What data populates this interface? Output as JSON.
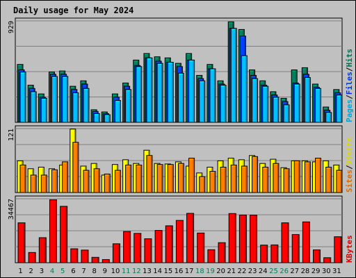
{
  "title": "Daily usage for May 2024",
  "colors": {
    "background": "#c0c0c0",
    "title": "#0000b0",
    "hits": "#00805c",
    "files": "#0040ff",
    "pages": "#00c0ff",
    "visits": "#ffff00",
    "sites": "#ff8000",
    "kbytes": "#ff0000",
    "weekend_label": "#00805c",
    "weekday_label": "#000000"
  },
  "chart_data": {
    "type": "bar",
    "title": "Daily usage for May 2024",
    "categories": [
      "1",
      "2",
      "3",
      "4",
      "5",
      "6",
      "7",
      "8",
      "9",
      "10",
      "11",
      "12",
      "13",
      "14",
      "15",
      "16",
      "17",
      "18",
      "19",
      "20",
      "21",
      "22",
      "23",
      "24",
      "25",
      "26",
      "27",
      "28",
      "29",
      "30",
      "31"
    ],
    "weekend_days": [
      "4",
      "5",
      "11",
      "12",
      "18",
      "19",
      "25",
      "26"
    ],
    "grid": true,
    "legend": "right",
    "panels": [
      {
        "name": "top",
        "max_label": "929",
        "ylim": [
          0,
          929
        ],
        "legend_words": [
          "Pages",
          "Files",
          "Hits"
        ],
        "series": [
          {
            "name": "Hits",
            "values": [
              530,
              340,
              260,
              460,
              470,
              330,
              380,
              115,
              95,
              260,
              360,
              570,
              630,
              600,
              590,
              540,
              630,
              430,
              530,
              380,
              920,
              850,
              480,
              380,
              280,
              220,
              480,
              500,
              350,
              140,
              300
            ]
          },
          {
            "name": "Files",
            "values": [
              480,
              310,
              230,
              440,
              440,
              300,
              350,
              100,
              80,
              230,
              330,
              520,
              590,
              560,
              550,
              510,
              570,
              400,
              490,
              350,
              860,
              790,
              430,
              340,
              250,
              190,
              360,
              440,
              320,
              110,
              270
            ]
          },
          {
            "name": "Pages",
            "values": [
              460,
              280,
              220,
              420,
              420,
              270,
              310,
              80,
              70,
              200,
              300,
              510,
              590,
              540,
              550,
              450,
              570,
              380,
              490,
              340,
              860,
              610,
              400,
              330,
              230,
              160,
              350,
              410,
              310,
              90,
              250
            ]
          }
        ]
      },
      {
        "name": "middle",
        "max_label": "121",
        "ylim": [
          0,
          121
        ],
        "legend_words": [
          "Sites",
          "Visits"
        ],
        "series": [
          {
            "name": "Visits",
            "values": [
              60,
              45,
              48,
              45,
              52,
              120,
              50,
              55,
              33,
              53,
              62,
              55,
              80,
              55,
              54,
              58,
              50,
              37,
              48,
              60,
              65,
              62,
              70,
              55,
              63,
              47,
              60,
              60,
              58,
              60,
              52
            ]
          },
          {
            "name": "Sites",
            "values": [
              52,
              33,
              33,
              43,
              58,
              95,
              42,
              45,
              35,
              42,
              52,
              52,
              70,
              53,
              53,
              55,
              65,
              30,
              40,
              48,
              52,
              50,
              68,
              48,
              55,
              45,
              60,
              58,
              65,
              48,
              42
            ]
          }
        ]
      },
      {
        "name": "bottom",
        "max_label": "34467",
        "ylim": [
          0,
          34467
        ],
        "legend_words": [
          "KBytes"
        ],
        "series": [
          {
            "name": "KBytes",
            "values": [
              21500,
              5500,
              13500,
              33900,
              30400,
              7500,
              6800,
              2900,
              1700,
              10200,
              16800,
              15800,
              12900,
              17400,
              19900,
              22800,
              26600,
              16000,
              7000,
              10800,
              26500,
              25700,
              25600,
              9500,
              9600,
              21500,
              15200,
              22000,
              6900,
              2700,
              14000
            ]
          }
        ]
      }
    ]
  }
}
